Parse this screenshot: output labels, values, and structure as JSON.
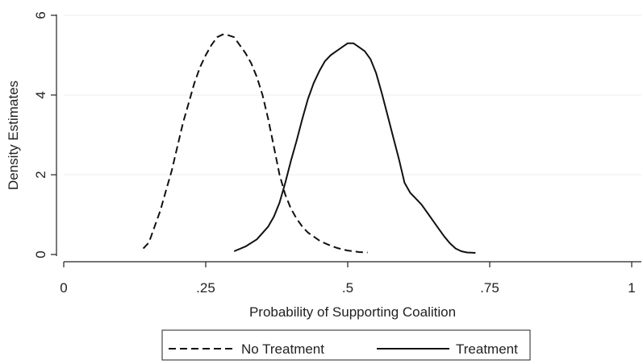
{
  "chart_data": {
    "type": "line",
    "title": "",
    "xlabel": "Probability of Supporting Coalition",
    "ylabel": "Density Estimates",
    "xlim": [
      0,
      1
    ],
    "ylim": [
      0,
      6
    ],
    "xticks": [
      0,
      0.25,
      0.5,
      0.75,
      1
    ],
    "xtick_labels": [
      "0",
      ".25",
      ".5",
      ".75",
      "1"
    ],
    "yticks": [
      0,
      2,
      4,
      6
    ],
    "ytick_labels": [
      "0",
      "2",
      "4",
      "6"
    ],
    "grid": "horizontal",
    "legend_position": "bottom",
    "series": [
      {
        "name": "No Treatment",
        "style": "dashed",
        "color": "#111111",
        "x": [
          0.14,
          0.15,
          0.16,
          0.17,
          0.18,
          0.19,
          0.2,
          0.21,
          0.22,
          0.23,
          0.24,
          0.25,
          0.26,
          0.27,
          0.28,
          0.29,
          0.3,
          0.31,
          0.32,
          0.33,
          0.34,
          0.35,
          0.36,
          0.37,
          0.38,
          0.39,
          0.4,
          0.41,
          0.42,
          0.43,
          0.44,
          0.45,
          0.46,
          0.47,
          0.48,
          0.49,
          0.5,
          0.51,
          0.52,
          0.535
        ],
        "y": [
          0.15,
          0.3,
          0.7,
          1.1,
          1.6,
          2.1,
          2.7,
          3.3,
          3.8,
          4.3,
          4.7,
          5.0,
          5.25,
          5.45,
          5.52,
          5.5,
          5.45,
          5.25,
          5.05,
          4.8,
          4.45,
          4.0,
          3.4,
          2.7,
          2.0,
          1.5,
          1.15,
          0.9,
          0.7,
          0.55,
          0.45,
          0.35,
          0.28,
          0.22,
          0.17,
          0.13,
          0.1,
          0.08,
          0.06,
          0.05
        ]
      },
      {
        "name": "Treatment",
        "style": "solid",
        "color": "#111111",
        "x": [
          0.3,
          0.32,
          0.34,
          0.36,
          0.37,
          0.38,
          0.39,
          0.4,
          0.41,
          0.42,
          0.43,
          0.44,
          0.45,
          0.46,
          0.47,
          0.48,
          0.49,
          0.5,
          0.51,
          0.52,
          0.53,
          0.54,
          0.55,
          0.56,
          0.57,
          0.58,
          0.59,
          0.6,
          0.61,
          0.62,
          0.63,
          0.64,
          0.65,
          0.66,
          0.67,
          0.68,
          0.69,
          0.7,
          0.71,
          0.725
        ],
        "y": [
          0.08,
          0.2,
          0.38,
          0.7,
          0.95,
          1.3,
          1.8,
          2.35,
          2.85,
          3.4,
          3.9,
          4.3,
          4.6,
          4.85,
          5.0,
          5.1,
          5.2,
          5.3,
          5.3,
          5.2,
          5.1,
          4.9,
          4.55,
          4.05,
          3.5,
          2.95,
          2.4,
          1.8,
          1.55,
          1.4,
          1.25,
          1.05,
          0.85,
          0.65,
          0.45,
          0.28,
          0.15,
          0.08,
          0.05,
          0.04
        ]
      }
    ]
  }
}
